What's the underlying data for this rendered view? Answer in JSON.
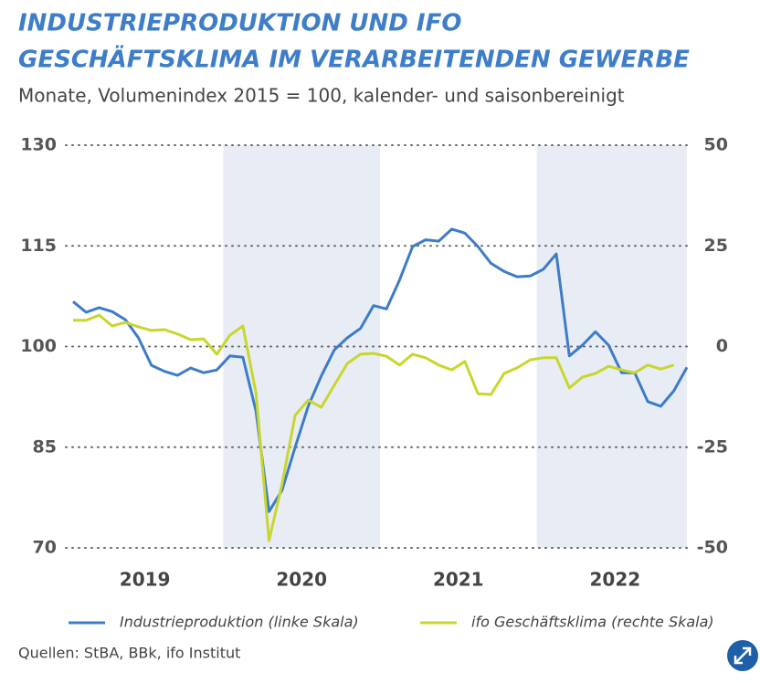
{
  "chart_data": {
    "type": "line",
    "title": [
      "INDUSTRIEPRODUKTION UND IFO",
      "GESCHÄFTSKLIMA IM VERARBEITENDEN GEWERBE"
    ],
    "subtitle": "Monate, Volumenindex 2015 = 100, kalender- und saisonbereinigt",
    "categories": [
      null,
      null,
      null,
      null,
      null,
      "2019",
      null,
      null,
      null,
      null,
      null,
      null,
      null,
      null,
      null,
      null,
      null,
      "2020",
      null,
      null,
      null,
      null,
      null,
      null,
      null,
      null,
      null,
      null,
      null,
      "2021",
      null,
      null,
      null,
      null,
      null,
      null,
      null,
      null,
      null,
      null,
      null,
      "2022",
      null,
      null,
      null,
      null,
      null,
      null
    ],
    "shaded_ranges": [
      [
        12,
        23
      ],
      [
        36,
        47
      ]
    ],
    "series": [
      {
        "name": "Industrieproduktion (linke Skala)",
        "color": "#3d7cc9",
        "axis": "y",
        "values": [
          106.7,
          105.1,
          105.8,
          105.2,
          104,
          101.3,
          97.2,
          96.3,
          95.7,
          96.8,
          96.1,
          96.5,
          98.6,
          98.4,
          90.4,
          75.4,
          78.6,
          85,
          91.1,
          95.6,
          99.5,
          101.3,
          102.7,
          106.1,
          105.6,
          109.9,
          114.9,
          115.9,
          115.7,
          117.5,
          116.9,
          114.9,
          112.4,
          111.2,
          110.4,
          110.5,
          111.5,
          113.8,
          98.6,
          100.2,
          102.2,
          100.2,
          96.1,
          96.1,
          91.8,
          91.1,
          93.4,
          96.9
        ]
      },
      {
        "name": "ifo Geschäftsklima (rechte Skala)",
        "color": "#c8d62e",
        "axis": "y2",
        "values": [
          6.5,
          6.5,
          7.8,
          5.1,
          6,
          4.9,
          4,
          4.2,
          3.1,
          1.7,
          1.9,
          -1.9,
          2.8,
          5.1,
          -11.5,
          -48.2,
          -34.1,
          -17.1,
          -13.3,
          -15.1,
          -9.6,
          -4.2,
          -1.9,
          -1.7,
          -2.4,
          -4.6,
          -1.9,
          -2.8,
          -4.6,
          -5.8,
          -3.7,
          -11.7,
          -11.9,
          -6.7,
          -5.3,
          -3.3,
          -2.8,
          -2.8,
          -10.3,
          -7.6,
          -6.7,
          -4.9,
          -5.8,
          -6.5,
          -4.6,
          -5.6,
          -4.6,
          null
        ]
      }
    ],
    "ylim": [
      70,
      130
    ],
    "yticks": [
      70,
      85,
      100,
      115,
      130
    ],
    "y2lim": [
      -50,
      50
    ],
    "y2ticks": [
      -50,
      -25,
      0,
      25,
      50
    ],
    "grid": true,
    "source": "Quellen: StBA, BBk, ifo Institut"
  }
}
